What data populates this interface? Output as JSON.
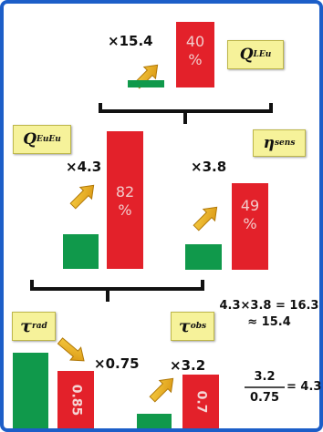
{
  "multipliers": {
    "top": "×15.4",
    "left": "×4.3",
    "right": "×3.8",
    "tau_rad": "×0.75",
    "tau_obs": "×3.2"
  },
  "bars": {
    "top_red_pct": "40\n%",
    "left_red_pct": "82\n%",
    "right_red_pct": "49\n%",
    "bottom_left_red": "0.85",
    "bottom_right_red": "0.7"
  },
  "labels": {
    "q_l_eu": {
      "main": "Q",
      "sup": "L",
      "sub": "Eu"
    },
    "q_eu_eu": {
      "main": "Q",
      "sup": "Eu",
      "sub": "Eu"
    },
    "eta_sens": {
      "main": "η",
      "sub": "sens"
    },
    "tau_rad": {
      "main": "τ",
      "sub": "rad"
    },
    "tau_obs": {
      "main": "τ",
      "sub": "obs"
    }
  },
  "equations": {
    "product_line1": "4.3×3.8 = 16.3",
    "product_line2": "≈ 15.4",
    "ratio_numerator": "3.2",
    "ratio_denominator": "0.75",
    "ratio_result": "= 4.3"
  },
  "colors": {
    "border": "#1c5ec8",
    "green": "#10994b",
    "red": "#e3212a",
    "badge": "#f6f29a",
    "arrow": "#f0b21a"
  }
}
